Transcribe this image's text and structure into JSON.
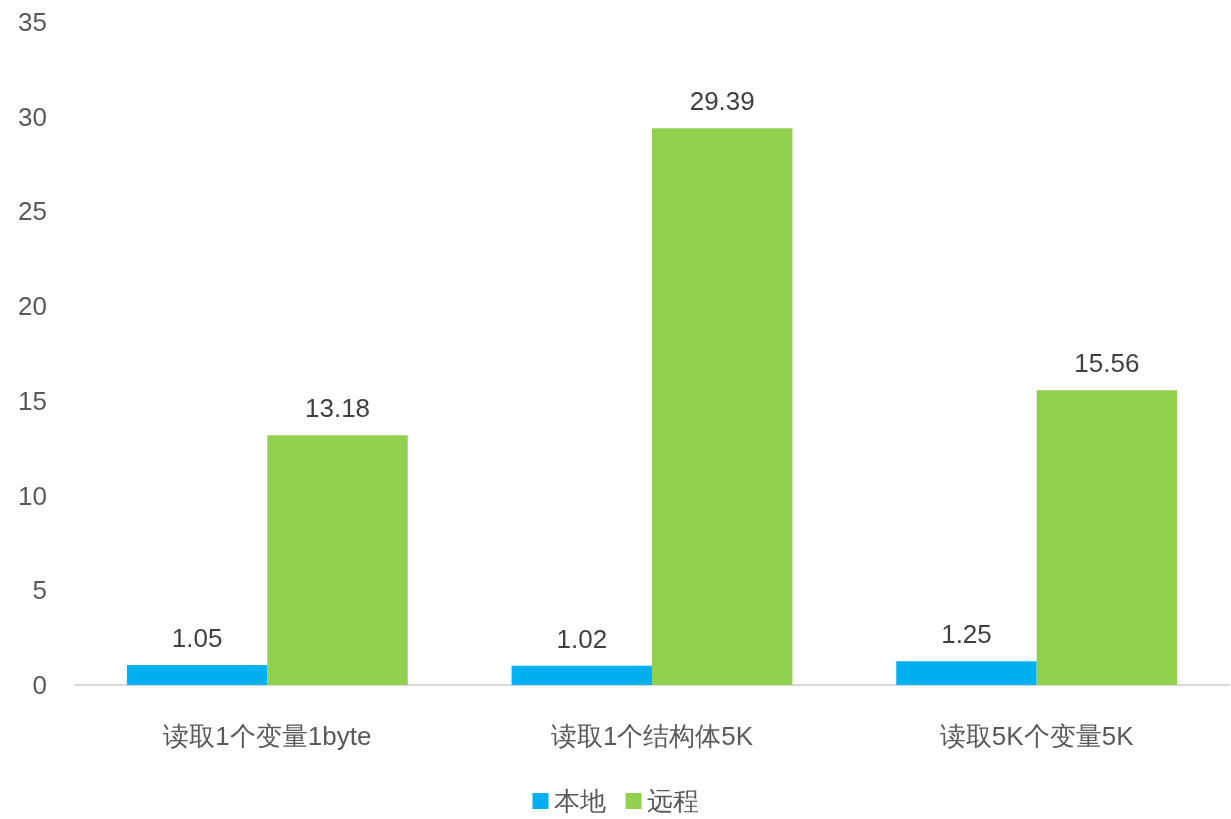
{
  "chart_data": {
    "type": "bar",
    "categories": [
      "读取1个变量1byte",
      "读取1个结构体5K",
      "读取5K个变量5K"
    ],
    "series": [
      {
        "name": "本地",
        "color": "#00b0f0",
        "values": [
          1.05,
          1.02,
          1.25
        ]
      },
      {
        "name": "远程",
        "color": "#92d050",
        "values": [
          13.18,
          29.39,
          15.56
        ]
      }
    ],
    "ylim": [
      0,
      35
    ],
    "yticks": [
      0,
      5,
      10,
      15,
      20,
      25,
      30,
      35
    ],
    "grid": false,
    "legend": "bottom",
    "data_labels": true
  }
}
